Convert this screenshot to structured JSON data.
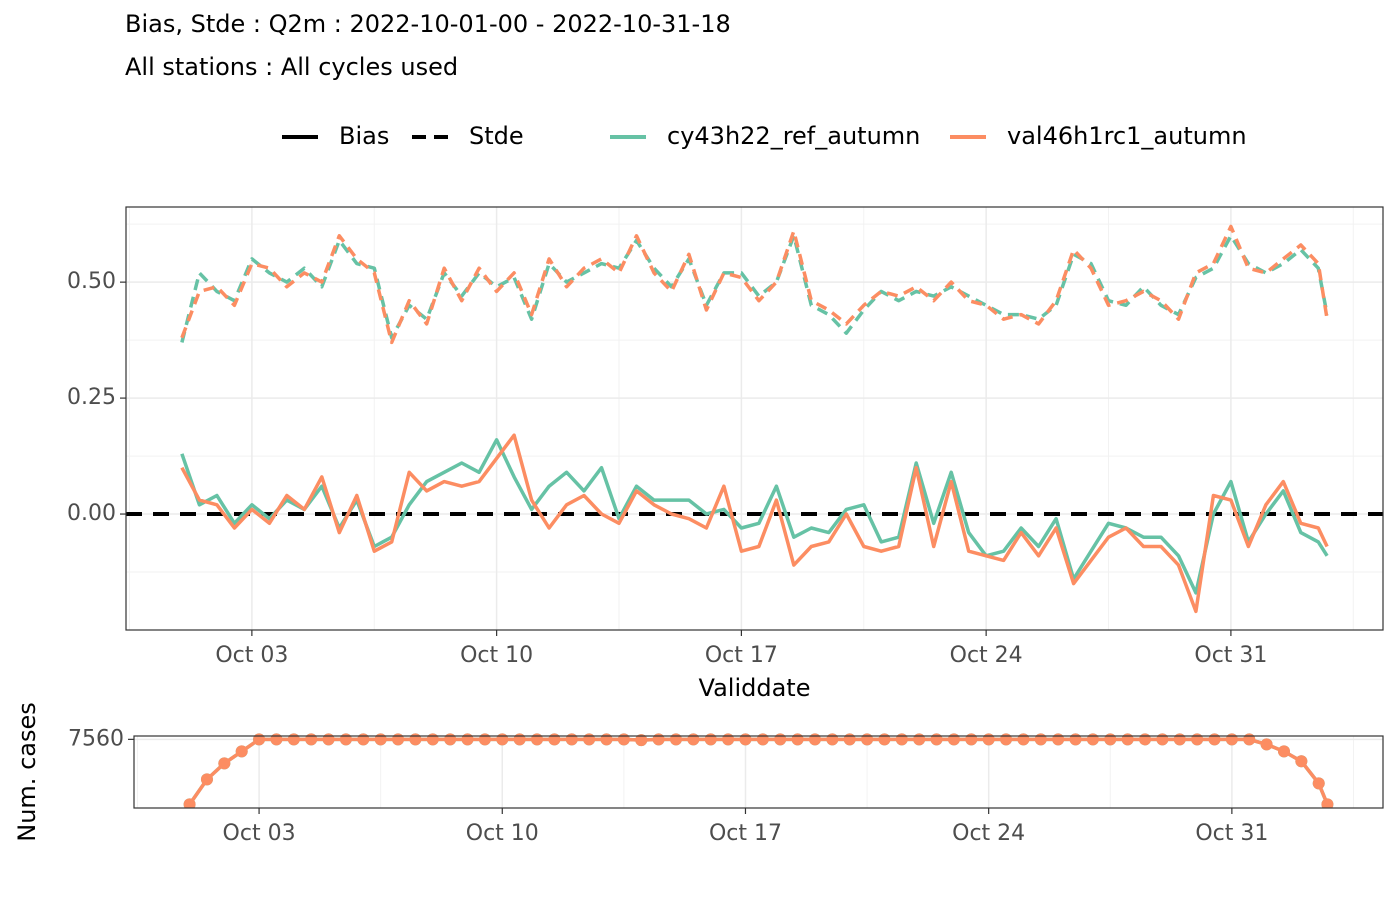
{
  "chart_data": [
    {
      "type": "line",
      "title": "Bias, Stde : Q2m : 2022-10-01-00 - 2022-10-31-18",
      "subtitle": "All stations : All cycles used",
      "xlabel": "Validdate",
      "metrics": [
        {
          "name": "Bias",
          "dash": "solid"
        },
        {
          "name": "Stde",
          "dash": "dashed"
        }
      ],
      "reference_line": 0,
      "grid": true,
      "x": [
        1,
        1.5,
        2,
        2.5,
        3,
        3.5,
        4,
        4.5,
        5,
        5.5,
        6,
        6.5,
        7,
        7.5,
        8,
        8.5,
        9,
        9.5,
        10,
        10.5,
        11,
        11.5,
        12,
        12.5,
        13,
        13.5,
        14,
        14.5,
        15,
        15.5,
        16,
        16.5,
        17,
        17.5,
        18,
        18.5,
        19,
        19.5,
        20,
        20.5,
        21,
        21.5,
        22,
        22.5,
        23,
        23.5,
        24,
        24.5,
        25,
        25.5,
        26,
        26.5,
        27,
        27.5,
        28,
        28.5,
        29,
        29.5,
        30,
        30.5,
        31,
        31.5,
        32,
        32.5,
        33,
        33.5,
        33.75
      ],
      "xlim": [
        -0.6,
        35.35
      ],
      "xticks": [
        {
          "value": 3,
          "label": "Oct 03"
        },
        {
          "value": 10,
          "label": "Oct 10"
        },
        {
          "value": 17,
          "label": "Oct 17"
        },
        {
          "value": 24,
          "label": "Oct 24"
        },
        {
          "value": 31,
          "label": "Oct 31"
        }
      ],
      "ylim": [
        -0.25,
        0.662
      ],
      "yticks": [
        {
          "value": 0,
          "label": "0.00"
        },
        {
          "value": 0.25,
          "label": "0.25"
        },
        {
          "value": 0.5,
          "label": "0.50"
        }
      ],
      "series": [
        {
          "name": "cy43h22_ref_autumn",
          "color": "#66c2a5",
          "values": [
            [
              0.13,
              0.02,
              0.04,
              -0.02,
              0.02,
              -0.01,
              0.03,
              0.01,
              0.06,
              -0.03,
              0.03,
              -0.07,
              -0.05,
              0.02,
              0.07,
              0.09,
              0.11,
              0.09,
              0.16,
              0.08,
              0.01,
              0.06,
              0.09,
              0.05,
              0.1,
              -0.01,
              0.06,
              0.03,
              0.03,
              0.03,
              0.0,
              0.01,
              -0.03,
              -0.02,
              0.06,
              -0.05,
              -0.03,
              -0.04,
              0.01,
              0.02,
              -0.06,
              -0.05,
              0.11,
              -0.02,
              0.09,
              -0.04,
              -0.09,
              -0.08,
              -0.03,
              -0.07,
              -0.01,
              -0.14,
              -0.08,
              -0.02,
              -0.03,
              -0.05,
              -0.05,
              -0.09,
              -0.17,
              0.0,
              0.07,
              -0.06,
              0.0,
              0.05,
              -0.04,
              -0.06,
              -0.09
            ],
            [
              0.37,
              0.52,
              0.48,
              0.46,
              0.55,
              0.52,
              0.5,
              0.53,
              0.49,
              0.59,
              0.54,
              0.53,
              0.38,
              0.45,
              0.42,
              0.52,
              0.47,
              0.52,
              0.49,
              0.51,
              0.42,
              0.54,
              0.5,
              0.52,
              0.54,
              0.53,
              0.59,
              0.53,
              0.49,
              0.55,
              0.45,
              0.52,
              0.52,
              0.47,
              0.5,
              0.6,
              0.45,
              0.43,
              0.39,
              0.44,
              0.48,
              0.46,
              0.48,
              0.47,
              0.49,
              0.47,
              0.45,
              0.43,
              0.43,
              0.42,
              0.45,
              0.56,
              0.54,
              0.46,
              0.45,
              0.49,
              0.45,
              0.43,
              0.51,
              0.53,
              0.6,
              0.54,
              0.52,
              0.54,
              0.57,
              0.53,
              0.43
            ]
          ]
        },
        {
          "name": "val46h1rc1_autumn",
          "color": "#fc8d62",
          "values": [
            [
              0.1,
              0.03,
              0.02,
              -0.03,
              0.01,
              -0.02,
              0.04,
              0.01,
              0.08,
              -0.04,
              0.04,
              -0.08,
              -0.06,
              0.09,
              0.05,
              0.07,
              0.06,
              0.07,
              0.12,
              0.17,
              0.03,
              -0.03,
              0.02,
              0.04,
              0.0,
              -0.02,
              0.05,
              0.02,
              0.0,
              -0.01,
              -0.03,
              0.06,
              -0.08,
              -0.07,
              0.03,
              -0.11,
              -0.07,
              -0.06,
              0.0,
              -0.07,
              -0.08,
              -0.07,
              0.1,
              -0.07,
              0.07,
              -0.08,
              -0.09,
              -0.1,
              -0.04,
              -0.09,
              -0.03,
              -0.15,
              -0.1,
              -0.05,
              -0.03,
              -0.07,
              -0.07,
              -0.11,
              -0.21,
              0.04,
              0.03,
              -0.07,
              0.02,
              0.07,
              -0.02,
              -0.03,
              -0.07
            ],
            [
              0.38,
              0.48,
              0.49,
              0.45,
              0.54,
              0.53,
              0.49,
              0.52,
              0.5,
              0.6,
              0.55,
              0.52,
              0.37,
              0.46,
              0.41,
              0.53,
              0.46,
              0.53,
              0.48,
              0.52,
              0.43,
              0.55,
              0.49,
              0.53,
              0.55,
              0.52,
              0.6,
              0.52,
              0.48,
              0.56,
              0.44,
              0.52,
              0.51,
              0.46,
              0.5,
              0.61,
              0.46,
              0.44,
              0.41,
              0.45,
              0.48,
              0.47,
              0.49,
              0.46,
              0.5,
              0.46,
              0.45,
              0.42,
              0.43,
              0.41,
              0.46,
              0.57,
              0.53,
              0.45,
              0.46,
              0.48,
              0.46,
              0.42,
              0.52,
              0.54,
              0.62,
              0.53,
              0.52,
              0.55,
              0.58,
              0.54,
              0.42
            ]
          ]
        }
      ]
    },
    {
      "type": "line_points",
      "ylabel": "Num. cases",
      "grid": true,
      "x": [
        1,
        1.5,
        2,
        2.5,
        3,
        3.5,
        4,
        4.5,
        5,
        5.5,
        6,
        6.5,
        7,
        7.5,
        8,
        8.5,
        9,
        9.5,
        10,
        10.5,
        11,
        11.5,
        12,
        12.5,
        13,
        13.5,
        14,
        14.5,
        15,
        15.5,
        16,
        16.5,
        17,
        17.5,
        18,
        18.5,
        19,
        19.5,
        20,
        20.5,
        21,
        21.5,
        22,
        22.5,
        23,
        23.5,
        24,
        24.5,
        25,
        25.5,
        26,
        26.5,
        27,
        27.5,
        28,
        28.5,
        29,
        29.5,
        30,
        30.5,
        31,
        31.5,
        32,
        32.5,
        33,
        33.5,
        33.75
      ],
      "xlim": [
        -0.6,
        35.35
      ],
      "xticks": [
        {
          "value": 3,
          "label": "Oct 03"
        },
        {
          "value": 10,
          "label": "Oct 10"
        },
        {
          "value": 17,
          "label": "Oct 17"
        },
        {
          "value": 24,
          "label": "Oct 24"
        },
        {
          "value": 31,
          "label": "Oct 31"
        }
      ],
      "ylim": [
        4900,
        7690
      ],
      "yticks": [
        7560
      ],
      "series": [
        {
          "name": "cy43h22_ref_autumn",
          "color": "#66c2a5",
          "values": [
            5040,
            6010,
            6630,
            7095,
            7560,
            7560,
            7560,
            7560,
            7560,
            7560,
            7560,
            7560,
            7560,
            7560,
            7560,
            7560,
            7560,
            7560,
            7560,
            7560,
            7560,
            7560,
            7560,
            7560,
            7560,
            7560,
            7530,
            7560,
            7560,
            7560,
            7560,
            7560,
            7560,
            7560,
            7560,
            7560,
            7560,
            7560,
            7560,
            7560,
            7560,
            7560,
            7560,
            7560,
            7560,
            7560,
            7560,
            7560,
            7560,
            7560,
            7560,
            7560,
            7560,
            7560,
            7560,
            7560,
            7560,
            7560,
            7560,
            7560,
            7560,
            7560,
            7365,
            7095,
            6710,
            5855,
            5040
          ]
        },
        {
          "name": "val46h1rc1_autumn",
          "color": "#fc8d62",
          "values": [
            5040,
            6010,
            6630,
            7095,
            7560,
            7560,
            7560,
            7560,
            7560,
            7560,
            7560,
            7560,
            7560,
            7560,
            7560,
            7560,
            7560,
            7560,
            7560,
            7560,
            7560,
            7560,
            7560,
            7560,
            7560,
            7560,
            7530,
            7560,
            7560,
            7560,
            7560,
            7560,
            7560,
            7560,
            7560,
            7560,
            7560,
            7560,
            7560,
            7560,
            7560,
            7560,
            7560,
            7560,
            7560,
            7560,
            7560,
            7560,
            7560,
            7560,
            7560,
            7560,
            7560,
            7560,
            7560,
            7560,
            7560,
            7560,
            7560,
            7560,
            7560,
            7560,
            7365,
            7095,
            6710,
            5855,
            5040
          ]
        }
      ]
    }
  ]
}
